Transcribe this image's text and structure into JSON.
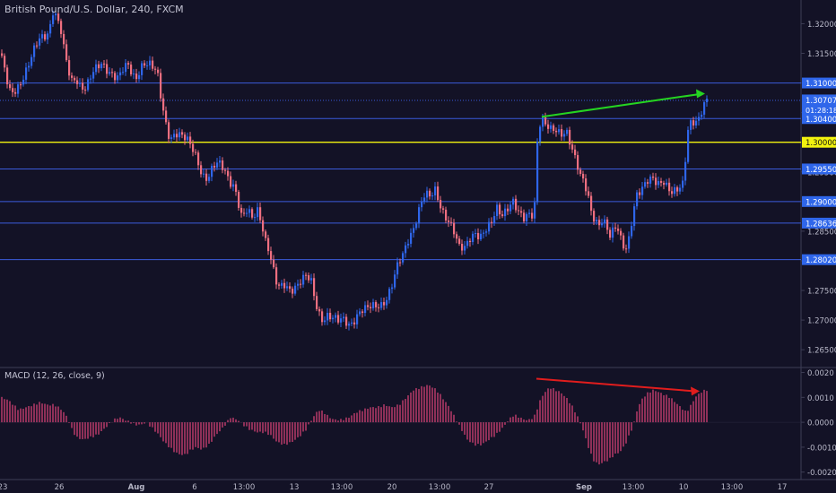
{
  "header": {
    "title": "British Pound/U.S. Dollar, 240, FXCM"
  },
  "colors": {
    "background": "#131226",
    "up": "#2f66ea",
    "down": "#ef6f80",
    "level_line": "#3b5bdb",
    "level_label": "#2f66ea",
    "key_level": "#f2f20f",
    "current_price": "#2f66ea",
    "divergence_price": "#25d421",
    "divergence_macd": "#e11d1d",
    "histogram": "#e0457a",
    "axis_text": "#b8b8c8",
    "separator": "#3d3d55"
  },
  "chart_data": [
    {
      "type": "candlestick",
      "title": "British Pound/U.S. Dollar, 240, FXCM",
      "ylim": [
        1.262,
        1.324
      ],
      "y_ticks": [
        "1.32000",
        "1.31500",
        "1.31000",
        "1.30500",
        "1.30000",
        "1.29500",
        "1.29000",
        "1.28500",
        "1.28000",
        "1.27500",
        "1.27000",
        "1.26500"
      ],
      "x_tick_labels": [
        "23",
        "26",
        "Aug",
        "6",
        "13:00",
        "13",
        "13:00",
        "20",
        "13:00",
        "27",
        "Sep",
        "13:00",
        "10",
        "13:00",
        "17"
      ],
      "horizontal_levels": [
        {
          "label": "1.31000",
          "value": 1.31,
          "style": "solid",
          "color": "#3b5bdb"
        },
        {
          "label": "1.30707",
          "value": 1.30707,
          "style": "dotted",
          "color": "#3b5bdb",
          "current": true
        },
        {
          "label": "1.30400",
          "value": 1.304,
          "style": "solid",
          "color": "#3b5bdb"
        },
        {
          "label": "1.30000",
          "value": 1.3,
          "style": "solid",
          "color": "#f2f20f"
        },
        {
          "label": "1.29550",
          "value": 1.2955,
          "style": "solid",
          "color": "#3b5bdb"
        },
        {
          "label": "1.29000",
          "value": 1.29,
          "style": "solid",
          "color": "#3b5bdb"
        },
        {
          "label": "1.28636",
          "value": 1.28636,
          "style": "solid",
          "color": "#3b5bdb"
        },
        {
          "label": "1.28020",
          "value": 1.2802,
          "style": "solid",
          "color": "#3b5bdb"
        }
      ],
      "current_price": {
        "value": "1.30707",
        "countdown": "01:28:18"
      },
      "price_path": [
        [
          0,
          1.315
        ],
        [
          4,
          1.313
        ],
        [
          8,
          1.31
        ],
        [
          12,
          1.308
        ],
        [
          18,
          1.309
        ],
        [
          25,
          1.311
        ],
        [
          32,
          1.313
        ],
        [
          38,
          1.315
        ],
        [
          44,
          1.317
        ],
        [
          50,
          1.318
        ],
        [
          55,
          1.319
        ],
        [
          60,
          1.323
        ],
        [
          64,
          1.321
        ],
        [
          68,
          1.319
        ],
        [
          72,
          1.315
        ],
        [
          76,
          1.312
        ],
        [
          80,
          1.31
        ],
        [
          85,
          1.311
        ],
        [
          90,
          1.31
        ],
        [
          96,
          1.3095
        ],
        [
          102,
          1.311
        ],
        [
          108,
          1.312
        ],
        [
          114,
          1.313
        ],
        [
          120,
          1.3125
        ],
        [
          126,
          1.312
        ],
        [
          132,
          1.311
        ],
        [
          138,
          1.312
        ],
        [
          144,
          1.3125
        ],
        [
          148,
          1.311
        ],
        [
          152,
          1.311
        ],
        [
          156,
          1.3125
        ],
        [
          160,
          1.314
        ],
        [
          164,
          1.3135
        ],
        [
          168,
          1.313
        ],
        [
          172,
          1.312
        ],
        [
          176,
          1.311
        ],
        [
          180,
          1.307
        ],
        [
          184,
          1.304
        ],
        [
          190,
          1.301
        ],
        [
          196,
          1.302
        ],
        [
          202,
          1.301
        ],
        [
          208,
          1.3
        ],
        [
          214,
          1.299
        ],
        [
          220,
          1.2975
        ],
        [
          226,
          1.295
        ],
        [
          232,
          1.294
        ],
        [
          238,
          1.2955
        ],
        [
          244,
          1.296
        ],
        [
          250,
          1.2955
        ],
        [
          256,
          1.294
        ],
        [
          262,
          1.293
        ],
        [
          266,
          1.29
        ],
        [
          270,
          1.287
        ],
        [
          276,
          1.288
        ],
        [
          282,
          1.287
        ],
        [
          288,
          1.289
        ],
        [
          292,
          1.287
        ],
        [
          296,
          1.284
        ],
        [
          300,
          1.282
        ],
        [
          304,
          1.279
        ],
        [
          308,
          1.276
        ],
        [
          312,
          1.275
        ],
        [
          318,
          1.276
        ],
        [
          324,
          1.2755
        ],
        [
          330,
          1.276
        ],
        [
          336,
          1.2765
        ],
        [
          342,
          1.277
        ],
        [
          348,
          1.276
        ],
        [
          352,
          1.273
        ],
        [
          356,
          1.2715
        ],
        [
          360,
          1.2705
        ],
        [
          366,
          1.271
        ],
        [
          372,
          1.27
        ],
        [
          378,
          1.2695
        ],
        [
          384,
          1.27
        ],
        [
          390,
          1.2695
        ],
        [
          396,
          1.2705
        ],
        [
          402,
          1.2715
        ],
        [
          408,
          1.2715
        ],
        [
          414,
          1.272
        ],
        [
          420,
          1.2725
        ],
        [
          426,
          1.273
        ],
        [
          432,
          1.274
        ],
        [
          438,
          1.276
        ],
        [
          444,
          1.279
        ],
        [
          450,
          1.281
        ],
        [
          456,
          1.284
        ],
        [
          462,
          1.286
        ],
        [
          468,
          1.289
        ],
        [
          474,
          1.291
        ],
        [
          480,
          1.2905
        ],
        [
          486,
          1.292
        ],
        [
          490,
          1.29
        ],
        [
          496,
          1.288
        ],
        [
          500,
          1.287
        ],
        [
          506,
          1.285
        ],
        [
          512,
          1.282
        ],
        [
          518,
          1.282
        ],
        [
          524,
          1.284
        ],
        [
          530,
          1.285
        ],
        [
          536,
          1.284
        ],
        [
          542,
          1.285
        ],
        [
          548,
          1.286
        ],
        [
          554,
          1.289
        ],
        [
          560,
          1.288
        ],
        [
          566,
          1.289
        ],
        [
          572,
          1.29
        ],
        [
          578,
          1.288
        ],
        [
          584,
          1.287
        ],
        [
          590,
          1.288
        ],
        [
          596,
          1.288
        ],
        [
          600,
          1.302
        ],
        [
          604,
          1.304
        ],
        [
          608,
          1.303
        ],
        [
          614,
          1.302
        ],
        [
          620,
          1.302
        ],
        [
          626,
          1.3015
        ],
        [
          632,
          1.302
        ],
        [
          638,
          1.299
        ],
        [
          644,
          1.296
        ],
        [
          648,
          1.294
        ],
        [
          652,
          1.293
        ],
        [
          656,
          1.291
        ],
        [
          660,
          1.288
        ],
        [
          664,
          1.287
        ],
        [
          668,
          1.286
        ],
        [
          672,
          1.287
        ],
        [
          676,
          1.286
        ],
        [
          680,
          1.284
        ],
        [
          684,
          1.285
        ],
        [
          688,
          1.286
        ],
        [
          694,
          1.283
        ],
        [
          698,
          1.282
        ],
        [
          702,
          1.284
        ],
        [
          706,
          1.288
        ],
        [
          710,
          1.291
        ],
        [
          716,
          1.292
        ],
        [
          722,
          1.2935
        ],
        [
          728,
          1.294
        ],
        [
          734,
          1.293
        ],
        [
          740,
          1.2935
        ],
        [
          746,
          1.292
        ],
        [
          750,
          1.2915
        ],
        [
          756,
          1.292
        ],
        [
          762,
          1.293
        ],
        [
          768,
          1.303
        ],
        [
          772,
          1.3035
        ],
        [
          776,
          1.3035
        ],
        [
          780,
          1.304
        ],
        [
          784,
          1.306
        ],
        [
          788,
          1.307
        ]
      ],
      "price_divergence_line": {
        "from": [
          604,
          1.3043
        ],
        "to": [
          786,
          1.3082
        ],
        "color": "#25d421"
      }
    },
    {
      "type": "bar",
      "title": "MACD (12, 26, close, 9)",
      "ylim": [
        -0.0023,
        0.0022
      ],
      "y_ticks": [
        "0.0020",
        "0.0010",
        "0.0000",
        "-0.0010",
        "-0.0020"
      ],
      "histogram_path": [
        [
          0,
          0.001
        ],
        [
          8,
          0.0009
        ],
        [
          14,
          0.0007
        ],
        [
          20,
          0.0005
        ],
        [
          28,
          0.0006
        ],
        [
          36,
          0.0007
        ],
        [
          44,
          0.0008
        ],
        [
          52,
          0.0007
        ],
        [
          60,
          0.0007
        ],
        [
          68,
          0.0005
        ],
        [
          74,
          0.0002
        ],
        [
          78,
          -0.0002
        ],
        [
          84,
          -0.0006
        ],
        [
          92,
          -0.0007
        ],
        [
          100,
          -0.0006
        ],
        [
          108,
          -0.0005
        ],
        [
          114,
          -0.0003
        ],
        [
          120,
          -0.0001
        ],
        [
          126,
          0.0001
        ],
        [
          132,
          0.0002
        ],
        [
          138,
          0.0001
        ],
        [
          144,
          0.0
        ],
        [
          150,
          -0.0001
        ],
        [
          156,
          -0.0001
        ],
        [
          162,
          0.0
        ],
        [
          168,
          -0.0002
        ],
        [
          176,
          -0.0005
        ],
        [
          182,
          -0.0008
        ],
        [
          188,
          -0.001
        ],
        [
          194,
          -0.0012
        ],
        [
          200,
          -0.0013
        ],
        [
          206,
          -0.0013
        ],
        [
          212,
          -0.0011
        ],
        [
          218,
          -0.001
        ],
        [
          224,
          -0.0011
        ],
        [
          232,
          -0.0009
        ],
        [
          240,
          -0.0005
        ],
        [
          248,
          -0.0002
        ],
        [
          256,
          0.0002
        ],
        [
          264,
          0.0001
        ],
        [
          270,
          -0.0001
        ],
        [
          278,
          -0.0003
        ],
        [
          286,
          -0.0004
        ],
        [
          294,
          -0.0004
        ],
        [
          300,
          -0.0005
        ],
        [
          308,
          -0.0008
        ],
        [
          316,
          -0.0009
        ],
        [
          324,
          -0.0008
        ],
        [
          332,
          -0.0006
        ],
        [
          340,
          -0.0003
        ],
        [
          348,
          0.0002
        ],
        [
          354,
          0.0005
        ],
        [
          360,
          0.0004
        ],
        [
          366,
          0.0002
        ],
        [
          372,
          0.0001
        ],
        [
          380,
          0.0001
        ],
        [
          388,
          0.0002
        ],
        [
          396,
          0.0004
        ],
        [
          404,
          0.0005
        ],
        [
          412,
          0.0006
        ],
        [
          420,
          0.0006
        ],
        [
          428,
          0.0007
        ],
        [
          436,
          0.0006
        ],
        [
          444,
          0.0007
        ],
        [
          452,
          0.001
        ],
        [
          460,
          0.0013
        ],
        [
          468,
          0.0014
        ],
        [
          476,
          0.0015
        ],
        [
          482,
          0.0014
        ],
        [
          488,
          0.0012
        ],
        [
          494,
          0.0009
        ],
        [
          500,
          0.0006
        ],
        [
          506,
          0.0002
        ],
        [
          512,
          -0.0002
        ],
        [
          520,
          -0.0007
        ],
        [
          528,
          -0.0009
        ],
        [
          536,
          -0.0009
        ],
        [
          544,
          -0.0007
        ],
        [
          552,
          -0.0005
        ],
        [
          560,
          -0.0002
        ],
        [
          566,
          0.0001
        ],
        [
          572,
          0.0003
        ],
        [
          578,
          0.0002
        ],
        [
          584,
          0.0001
        ],
        [
          590,
          0.0001
        ],
        [
          596,
          0.0003
        ],
        [
          600,
          0.0008
        ],
        [
          606,
          0.0012
        ],
        [
          612,
          0.0014
        ],
        [
          618,
          0.0013
        ],
        [
          624,
          0.0012
        ],
        [
          630,
          0.001
        ],
        [
          636,
          0.0007
        ],
        [
          642,
          0.0003
        ],
        [
          648,
          -0.0002
        ],
        [
          654,
          -0.0009
        ],
        [
          660,
          -0.0015
        ],
        [
          666,
          -0.0017
        ],
        [
          672,
          -0.0016
        ],
        [
          678,
          -0.0015
        ],
        [
          684,
          -0.0013
        ],
        [
          690,
          -0.0012
        ],
        [
          696,
          -0.0009
        ],
        [
          702,
          -0.0004
        ],
        [
          706,
          0.0
        ],
        [
          710,
          0.0006
        ],
        [
          716,
          0.001
        ],
        [
          722,
          0.0012
        ],
        [
          728,
          0.0013
        ],
        [
          734,
          0.0012
        ],
        [
          740,
          0.0011
        ],
        [
          746,
          0.001
        ],
        [
          752,
          0.0008
        ],
        [
          758,
          0.0006
        ],
        [
          764,
          0.0004
        ],
        [
          768,
          0.0006
        ],
        [
          774,
          0.001
        ],
        [
          780,
          0.0012
        ],
        [
          786,
          0.0013
        ],
        [
          788,
          0.0013
        ]
      ],
      "macd_divergence_line": {
        "from": [
          598,
          0.00175
        ],
        "to": [
          780,
          0.00125
        ],
        "color": "#e11d1d"
      }
    }
  ]
}
